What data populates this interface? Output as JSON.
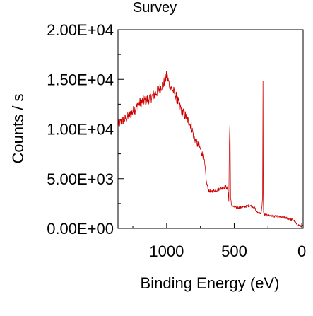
{
  "chart_data": {
    "type": "line",
    "title": "Survey",
    "xlabel": "Binding Energy (eV)",
    "ylabel": "Counts / s",
    "xlim": [
      1360,
      -10
    ],
    "ylim": [
      0,
      20000
    ],
    "x_reversed": true,
    "grid": false,
    "legend": "none",
    "x_ticks": [
      {
        "value": 1000,
        "label": "1000"
      },
      {
        "value": 500,
        "label": "500"
      },
      {
        "value": 0,
        "label": "0"
      }
    ],
    "y_ticks": [
      {
        "value": 0,
        "label": "0.00E+00"
      },
      {
        "value": 5000,
        "label": "5.00E+03"
      },
      {
        "value": 10000,
        "label": "1.00E+04"
      },
      {
        "value": 15000,
        "label": "1.50E+04"
      },
      {
        "value": 20000,
        "label": "2.00E+04"
      }
    ],
    "series": [
      {
        "color": "#cc0000",
        "x": [
          1360,
          1320,
          1280,
          1240,
          1200,
          1160,
          1120,
          1080,
          1040,
          1020,
          1000,
          980,
          960,
          940,
          920,
          900,
          880,
          860,
          840,
          820,
          800,
          780,
          760,
          740,
          725,
          715,
          705,
          690,
          670,
          650,
          620,
          600,
          580,
          560,
          545,
          540,
          536,
          531,
          527,
          520,
          510,
          490,
          470,
          450,
          430,
          400,
          380,
          350,
          330,
          300,
          290,
          287,
          285,
          283,
          280,
          270,
          250,
          220,
          200,
          160,
          120,
          90,
          60,
          50,
          40,
          20,
          10,
          0,
          -10
        ],
        "y": [
          10500,
          10900,
          11300,
          11900,
          12600,
          12900,
          13100,
          13600,
          14300,
          14600,
          15400,
          14500,
          14000,
          13600,
          12900,
          12200,
          11700,
          11300,
          10800,
          10400,
          9300,
          8600,
          8300,
          7600,
          7100,
          6000,
          4600,
          3800,
          3700,
          3800,
          3900,
          4000,
          4100,
          4200,
          3800,
          2700,
          8500,
          11000,
          3000,
          2400,
          2200,
          2100,
          2100,
          2100,
          2150,
          2250,
          2300,
          2100,
          1600,
          1500,
          3000,
          14500,
          3500,
          1600,
          1400,
          1350,
          1300,
          1250,
          1200,
          1150,
          1050,
          950,
          800,
          700,
          400,
          300,
          200,
          250,
          200
        ]
      }
    ]
  }
}
